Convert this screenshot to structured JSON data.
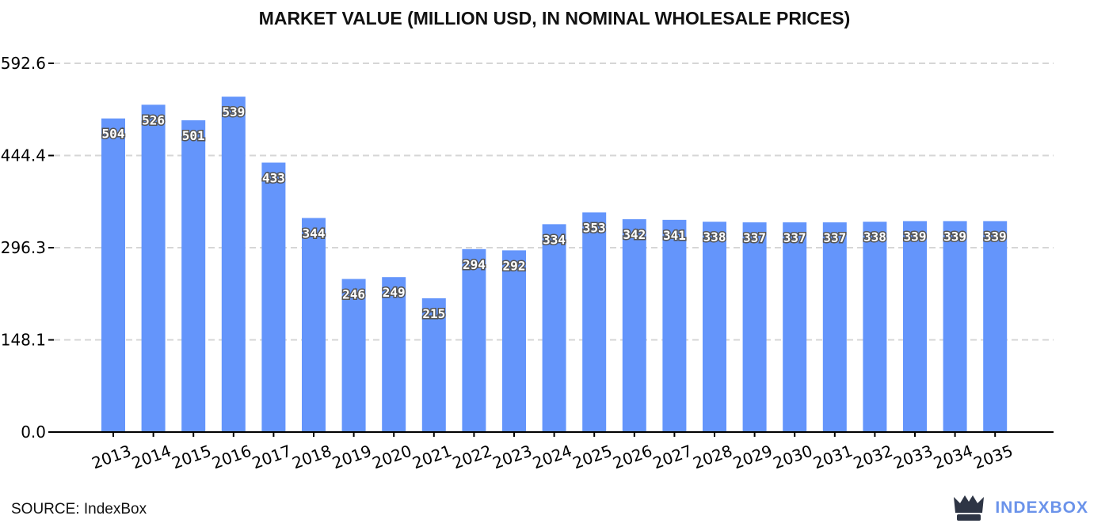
{
  "title": "MARKET VALUE (MILLION USD, IN NOMINAL WHOLESALE PRICES)",
  "source": "SOURCE: IndexBox",
  "brand": {
    "name": "INDEXBOX",
    "icon": "indexbox-crown-icon"
  },
  "colors": {
    "bar": "#6495fb",
    "grid": "#d6d6d6",
    "axis": "#000000",
    "brand": "#6b93ea"
  },
  "chart_data": {
    "type": "bar",
    "title": "MARKET VALUE (MILLION USD, IN NOMINAL WHOLESALE PRICES)",
    "xlabel": "",
    "ylabel": "",
    "categories": [
      "2013",
      "2014",
      "2015",
      "2016",
      "2017",
      "2018",
      "2019",
      "2020",
      "2021",
      "2022",
      "2023",
      "2024",
      "2025",
      "2026",
      "2027",
      "2028",
      "2029",
      "2030",
      "2031",
      "2032",
      "2033",
      "2034",
      "2035"
    ],
    "values": [
      504,
      526,
      501,
      539,
      433,
      344,
      246,
      249,
      215,
      294,
      292,
      334,
      353,
      342,
      341,
      338,
      337,
      337,
      337,
      338,
      339,
      339,
      339
    ],
    "data_labels": [
      "504",
      "526",
      "501",
      "539",
      "433",
      "344",
      "246",
      "249",
      "215",
      "294",
      "292",
      "334",
      "353",
      "342",
      "341",
      "338",
      "337",
      "337",
      "337",
      "338",
      "339",
      "339",
      "339"
    ],
    "yticks": [
      0.0,
      148.1,
      296.3,
      444.4,
      592.6
    ],
    "ytick_labels": [
      "0.0",
      "148.1",
      "296.3",
      "444.4",
      "592.6"
    ],
    "ylim": [
      0,
      592.6
    ],
    "grid": true,
    "legend": "none"
  }
}
